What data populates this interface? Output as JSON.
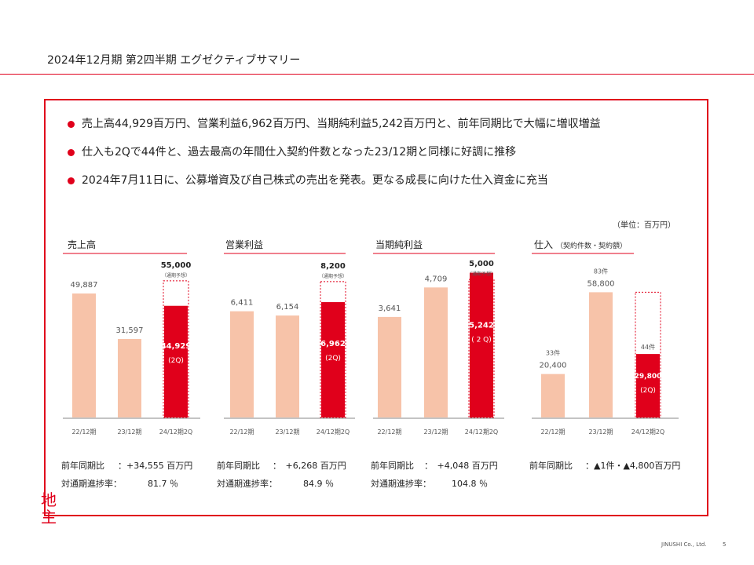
{
  "page": {
    "title": "2024年12月期 第2四半期 エグゼクティブサマリー",
    "footer": "JINUSHI Co., Ltd.",
    "page_number": "5"
  },
  "logo": {
    "line1": "地",
    "line2": "主"
  },
  "unit_label": "（単位：百万円）",
  "bullets": [
    "売上高44,929百万円、営業利益6,962百万円、当期純利益5,242百万円と、前年同期比で大幅に増収増益",
    "仕入も2Qで44件と、過去最高の年間仕入契約件数となった23/12期と同様に好調に推移",
    "2024年7月11日に、公募増資及び自己株式の売出を発表。更なる成長に向けた仕入資金に充当"
  ],
  "colors": {
    "accent": "#e0001b",
    "past_bar": "#f7c3a9"
  },
  "chart_data": [
    {
      "type": "bar",
      "title": "売上高",
      "categories": [
        "22/12期",
        "23/12期",
        "24/12期2Q"
      ],
      "values": [
        49887,
        31597,
        44929
      ],
      "value_labels": [
        "49,887",
        "31,597",
        "44,929"
      ],
      "current_suffix": "(2Q)",
      "forecast": {
        "value": 55000,
        "label": "55,000",
        "note": "（通期予想）"
      },
      "ylim": [
        0,
        60000
      ],
      "yoy_label": "前年同期比",
      "yoy_value": "：+34,555 百万円",
      "progress_label": "対通期進捗率：",
      "progress_value": "81.7 ％"
    },
    {
      "type": "bar",
      "title": "営業利益",
      "categories": [
        "22/12期",
        "23/12期",
        "24/12期2Q"
      ],
      "values": [
        6411,
        6154,
        6962
      ],
      "value_labels": [
        "6,411",
        "6,154",
        "6,962"
      ],
      "current_suffix": "(2Q)",
      "forecast": {
        "value": 8200,
        "label": "8,200",
        "note": "（通期予想）"
      },
      "ylim": [
        0,
        9000
      ],
      "yoy_label": "前年同期比",
      "yoy_value": "：　+6,268 百万円",
      "progress_label": "対通期進捗率：",
      "progress_value": "84.9 ％"
    },
    {
      "type": "bar",
      "title": "当期純利益",
      "categories": [
        "22/12期",
        "23/12期",
        "24/12期2Q"
      ],
      "values": [
        3641,
        4709,
        5242
      ],
      "value_labels": [
        "3,641",
        "4,709",
        "5,242"
      ],
      "current_suffix": "( 2 Q)",
      "forecast": {
        "value": 5000,
        "label": "5,000",
        "note": "（通期予想）"
      },
      "ylim": [
        0,
        5400
      ],
      "yoy_label": "前年同期比",
      "yoy_value": "：　+4,048 百万円",
      "progress_label": "対通期進捗率：",
      "progress_value": "104.8 ％"
    },
    {
      "type": "bar",
      "title": "仕入",
      "subtitle": "（契約件数・契約額）",
      "categories": [
        "22/12期",
        "23/12期",
        "24/12期2Q"
      ],
      "values": [
        20400,
        58800,
        29800
      ],
      "value_labels": [
        "20,400",
        "58,800",
        "29,800"
      ],
      "counts": [
        "33件",
        "83件",
        "44件"
      ],
      "current_suffix": "(2Q)",
      "forecast_outline_value": 58800,
      "ylim": [
        0,
        70000
      ],
      "yoy_label": "前年同期比",
      "yoy_value": "：▲1件・▲4,800百万円"
    }
  ]
}
